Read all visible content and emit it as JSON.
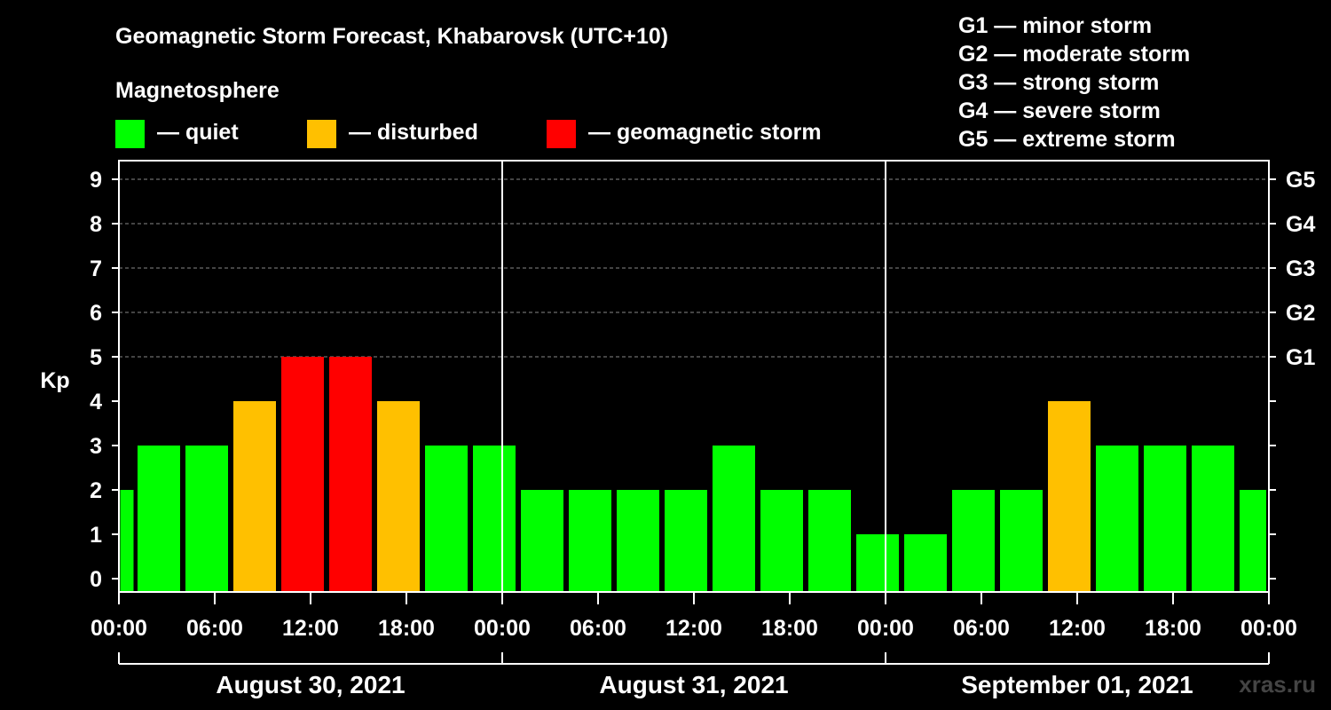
{
  "colors": {
    "background": "#000000",
    "quiet": "#00ff00",
    "disturbed": "#ffc000",
    "storm": "#ff0000",
    "grid": "#888888",
    "axis": "#ffffff",
    "watermark": "#444444"
  },
  "header": {
    "title": "Geomagnetic Storm Forecast, Khabarovsk (UTC+10)",
    "subtitle": "Magnetosphere"
  },
  "legend": {
    "items": [
      {
        "key": "quiet",
        "label": "— quiet"
      },
      {
        "key": "disturbed",
        "label": "— disturbed"
      },
      {
        "key": "storm",
        "label": "— geomagnetic storm"
      }
    ]
  },
  "storm_scale": [
    "G1 — minor storm",
    "G2 — moderate storm",
    "G3 — strong storm",
    "G4 — severe storm",
    "G5 — extreme storm"
  ],
  "watermark": "xras.ru",
  "chart_data": {
    "type": "bar",
    "ylabel": "Kp",
    "ylim": [
      0,
      9
    ],
    "yticks": [
      0,
      1,
      2,
      3,
      4,
      5,
      6,
      7,
      8,
      9
    ],
    "right_ticks": [
      {
        "value": 5,
        "label": "G1"
      },
      {
        "value": 6,
        "label": "G2"
      },
      {
        "value": 7,
        "label": "G3"
      },
      {
        "value": 8,
        "label": "G4"
      },
      {
        "value": 9,
        "label": "G5"
      }
    ],
    "grid": "horizontal dashed at Kp 5–9",
    "x_range_hours": [
      0,
      72
    ],
    "xticks": [
      {
        "hour": 0,
        "label": "00:00"
      },
      {
        "hour": 6,
        "label": "06:00"
      },
      {
        "hour": 12,
        "label": "12:00"
      },
      {
        "hour": 18,
        "label": "18:00"
      },
      {
        "hour": 24,
        "label": "00:00"
      },
      {
        "hour": 30,
        "label": "06:00"
      },
      {
        "hour": 36,
        "label": "12:00"
      },
      {
        "hour": 42,
        "label": "18:00"
      },
      {
        "hour": 48,
        "label": "00:00"
      },
      {
        "hour": 54,
        "label": "06:00"
      },
      {
        "hour": 60,
        "label": "12:00"
      },
      {
        "hour": 66,
        "label": "18:00"
      },
      {
        "hour": 72,
        "label": "00:00"
      }
    ],
    "days": [
      {
        "label": "August 30, 2021",
        "start": 0,
        "end": 24
      },
      {
        "label": "August 31, 2021",
        "start": 24,
        "end": 48
      },
      {
        "label": "September 01, 2021",
        "start": 48,
        "end": 72
      }
    ],
    "bars": [
      {
        "start": 0,
        "end": 1,
        "kp": 2,
        "level": "quiet"
      },
      {
        "start": 1,
        "end": 4,
        "kp": 3,
        "level": "quiet"
      },
      {
        "start": 4,
        "end": 7,
        "kp": 3,
        "level": "quiet"
      },
      {
        "start": 7,
        "end": 10,
        "kp": 4,
        "level": "disturbed"
      },
      {
        "start": 10,
        "end": 13,
        "kp": 5,
        "level": "storm"
      },
      {
        "start": 13,
        "end": 16,
        "kp": 5,
        "level": "storm"
      },
      {
        "start": 16,
        "end": 19,
        "kp": 4,
        "level": "disturbed"
      },
      {
        "start": 19,
        "end": 22,
        "kp": 3,
        "level": "quiet"
      },
      {
        "start": 22,
        "end": 25,
        "kp": 3,
        "level": "quiet"
      },
      {
        "start": 25,
        "end": 28,
        "kp": 2,
        "level": "quiet"
      },
      {
        "start": 28,
        "end": 31,
        "kp": 2,
        "level": "quiet"
      },
      {
        "start": 31,
        "end": 34,
        "kp": 2,
        "level": "quiet"
      },
      {
        "start": 34,
        "end": 37,
        "kp": 2,
        "level": "quiet"
      },
      {
        "start": 37,
        "end": 40,
        "kp": 3,
        "level": "quiet"
      },
      {
        "start": 40,
        "end": 43,
        "kp": 2,
        "level": "quiet"
      },
      {
        "start": 43,
        "end": 46,
        "kp": 2,
        "level": "quiet"
      },
      {
        "start": 46,
        "end": 49,
        "kp": 1,
        "level": "quiet"
      },
      {
        "start": 49,
        "end": 52,
        "kp": 1,
        "level": "quiet"
      },
      {
        "start": 52,
        "end": 55,
        "kp": 2,
        "level": "quiet"
      },
      {
        "start": 55,
        "end": 58,
        "kp": 2,
        "level": "quiet"
      },
      {
        "start": 58,
        "end": 61,
        "kp": 4,
        "level": "disturbed"
      },
      {
        "start": 61,
        "end": 64,
        "kp": 3,
        "level": "quiet"
      },
      {
        "start": 64,
        "end": 67,
        "kp": 3,
        "level": "quiet"
      },
      {
        "start": 67,
        "end": 70,
        "kp": 3,
        "level": "quiet"
      },
      {
        "start": 70,
        "end": 72,
        "kp": 2,
        "level": "quiet"
      }
    ]
  }
}
